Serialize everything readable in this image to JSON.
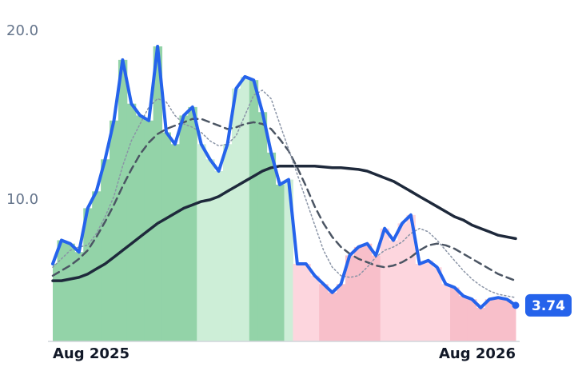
{
  "chart_data": {
    "type": "line",
    "categories": [
      "Aug 2025",
      null,
      null,
      null,
      null,
      null,
      null,
      null,
      null,
      null,
      null,
      null,
      null,
      null,
      null,
      null,
      null,
      null,
      null,
      null,
      null,
      null,
      null,
      null,
      null,
      null,
      null,
      null,
      null,
      null,
      null,
      null,
      null,
      null,
      null,
      null,
      null,
      null,
      null,
      null,
      null,
      null,
      null,
      null,
      null,
      null,
      null,
      null,
      null,
      null,
      null,
      null,
      null,
      "Aug 2026"
    ],
    "ylim": [
      1.6,
      21.85
    ],
    "yticks": [
      {
        "value": 10,
        "label": "10.0"
      },
      {
        "value": 20,
        "label": "20.0"
      }
    ],
    "area_colors": [
      "#93d3a8",
      "#93d3a8",
      "#93d3a8",
      "#93d3a8",
      "#93d3a8",
      "#93d3a8",
      "#93d3a8",
      "#93d3a8",
      "#93d3a8",
      "#93d3a8",
      "#93d3a8",
      "#93d3a8",
      "#93d3a8",
      "#93d3a8",
      "#93d3a8",
      "#93d3a8",
      "#93d3a8",
      "#cdeed7",
      "#cdeed7",
      "#cdeed7",
      "#cdeed7",
      "#cdeed7",
      "#cdeed7",
      "#93d3a8",
      "#93d3a8",
      "#93d3a8",
      "#93d3a8",
      "#cdeed7",
      "#fdd6de",
      "#fdd6de",
      "#fdd6de",
      "#f8bfca",
      "#f8bfca",
      "#f8bfca",
      "#f8bfca",
      "#f8bfca",
      "#f8bfca",
      "#f8bfca",
      "#fdd6de",
      "#fdd6de",
      "#fdd6de",
      "#fdd6de",
      "#fdd6de",
      "#fdd6de",
      "#fdd6de",
      "#fdd6de",
      "#f8bfca",
      "#f8bfca",
      "#f8bfca",
      "#f8bfca",
      "#f8bfca",
      "#f8bfca",
      "#f8bfca",
      "#f8bfca"
    ],
    "series": [
      {
        "color": "#2563eb",
        "style": "solid",
        "width": 4,
        "values": [
          6.2,
          7.6,
          7.4,
          6.9,
          9.5,
          10.5,
          12.4,
          14.7,
          18.3,
          15.7,
          15.0,
          14.7,
          19.1,
          14.0,
          13.3,
          15.0,
          15.5,
          13.3,
          12.4,
          11.7,
          13.3,
          16.6,
          17.3,
          17.1,
          15.2,
          12.8,
          10.9,
          11.2,
          6.2,
          6.2,
          5.5,
          5.0,
          4.5,
          5.0,
          6.7,
          7.2,
          7.4,
          6.7,
          8.3,
          7.6,
          8.6,
          9.1,
          6.2,
          6.4,
          6.0,
          5.0,
          4.8,
          4.3,
          4.1,
          3.6,
          4.1,
          4.2,
          4.1,
          3.74
        ]
      },
      {
        "color": "#8a94a6",
        "style": "dotted",
        "width": 1.5,
        "values": [
          6.0,
          6.5,
          7.0,
          7.2,
          7.3,
          8.0,
          9.0,
          10.2,
          12.0,
          13.5,
          14.5,
          15.5,
          16.0,
          15.8,
          15.0,
          14.5,
          14.3,
          14.0,
          13.5,
          13.2,
          13.3,
          13.8,
          15.0,
          16.2,
          16.5,
          16.0,
          14.5,
          13.0,
          11.5,
          10.0,
          8.5,
          7.0,
          6.0,
          5.5,
          5.4,
          5.5,
          6.0,
          6.6,
          7.0,
          7.2,
          7.5,
          8.0,
          8.3,
          8.1,
          7.6,
          7.0,
          6.4,
          5.8,
          5.3,
          4.9,
          4.6,
          4.4,
          4.3,
          4.2
        ]
      },
      {
        "color": "#4b5563",
        "style": "dashed",
        "width": 2.5,
        "values": [
          5.5,
          5.8,
          6.1,
          6.5,
          7.0,
          7.8,
          8.7,
          9.7,
          10.8,
          11.8,
          12.7,
          13.4,
          13.9,
          14.2,
          14.4,
          14.6,
          14.8,
          14.8,
          14.6,
          14.4,
          14.2,
          14.3,
          14.5,
          14.6,
          14.5,
          14.2,
          13.6,
          12.9,
          11.9,
          10.8,
          9.6,
          8.6,
          7.8,
          7.2,
          6.8,
          6.5,
          6.3,
          6.1,
          6.0,
          6.1,
          6.3,
          6.6,
          7.0,
          7.3,
          7.4,
          7.3,
          7.1,
          6.8,
          6.5,
          6.2,
          5.9,
          5.6,
          5.4,
          5.2
        ]
      },
      {
        "color": "#1e293b",
        "style": "solid",
        "width": 3.5,
        "values": [
          5.2,
          5.2,
          5.3,
          5.4,
          5.6,
          5.9,
          6.2,
          6.6,
          7.0,
          7.4,
          7.8,
          8.2,
          8.6,
          8.9,
          9.2,
          9.5,
          9.7,
          9.9,
          10.0,
          10.2,
          10.5,
          10.8,
          11.1,
          11.4,
          11.7,
          11.9,
          12.0,
          12.0,
          12.0,
          12.0,
          12.0,
          11.95,
          11.9,
          11.9,
          11.85,
          11.8,
          11.7,
          11.5,
          11.3,
          11.1,
          10.8,
          10.5,
          10.2,
          9.9,
          9.6,
          9.3,
          9.0,
          8.8,
          8.5,
          8.3,
          8.1,
          7.9,
          7.8,
          7.7
        ]
      }
    ]
  }
}
